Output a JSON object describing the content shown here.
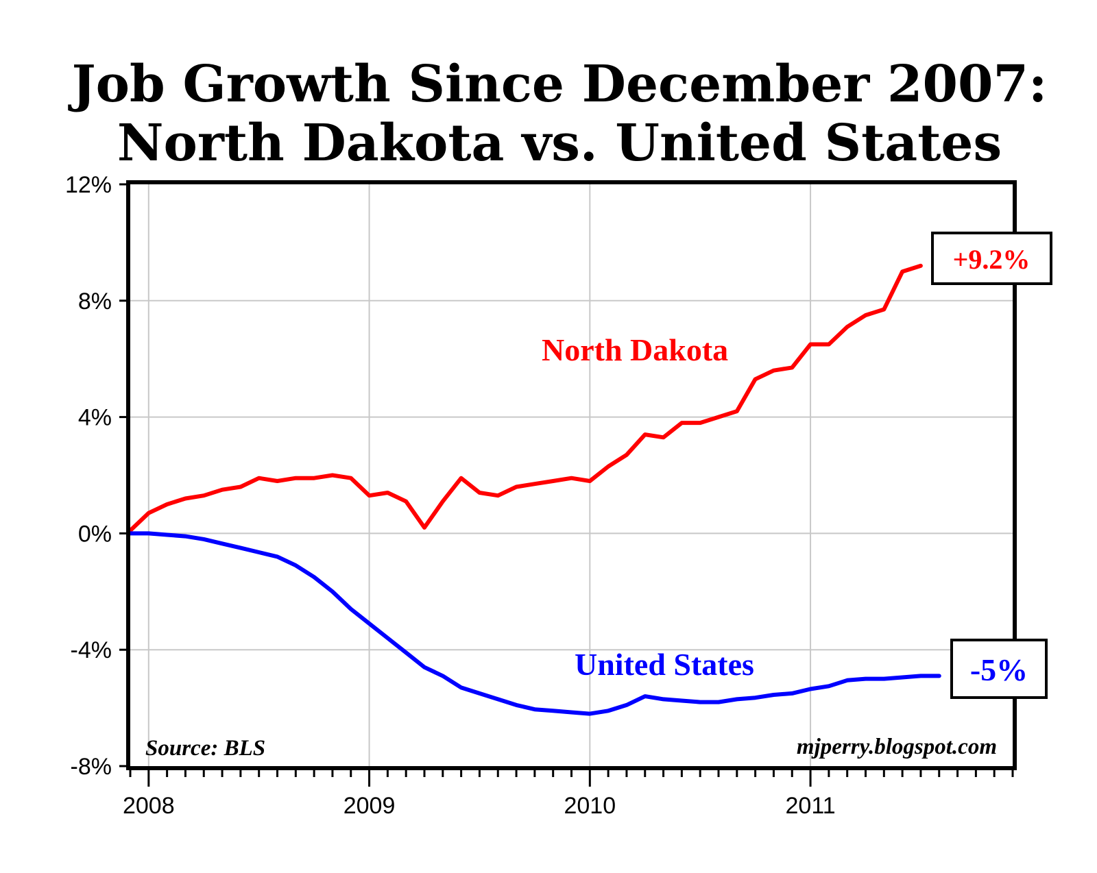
{
  "chart_data": {
    "type": "line",
    "title_line1": "Job Growth Since December 2007:",
    "title_line2": "North Dakota vs. United States",
    "xlabel": "",
    "ylabel": "",
    "x_ticks": [
      "2008",
      "2009",
      "2010",
      "2011"
    ],
    "y_ticks": [
      "12%",
      "8%",
      "4%",
      "0%",
      "-4%",
      "-8%"
    ],
    "ylim": [
      -8,
      12
    ],
    "xlim": [
      "2007-12",
      "2011-12"
    ],
    "grid": true,
    "source_note": "Source: BLS",
    "site_note": "mjperry.blogspot.com",
    "x": [
      "2007-12",
      "2008-01",
      "2008-02",
      "2008-03",
      "2008-04",
      "2008-05",
      "2008-06",
      "2008-07",
      "2008-08",
      "2008-09",
      "2008-10",
      "2008-11",
      "2008-12",
      "2009-01",
      "2009-02",
      "2009-03",
      "2009-04",
      "2009-05",
      "2009-06",
      "2009-07",
      "2009-08",
      "2009-09",
      "2009-10",
      "2009-11",
      "2009-12",
      "2010-01",
      "2010-02",
      "2010-03",
      "2010-04",
      "2010-05",
      "2010-06",
      "2010-07",
      "2010-08",
      "2010-09",
      "2010-10",
      "2010-11",
      "2010-12",
      "2011-01",
      "2011-02",
      "2011-03",
      "2011-04",
      "2011-05",
      "2011-06",
      "2011-07",
      "2011-08"
    ],
    "series": [
      {
        "name": "North Dakota",
        "color": "#ff0000",
        "end_label": "+9.2%",
        "values": [
          0.1,
          0.7,
          1.0,
          1.2,
          1.3,
          1.5,
          1.6,
          1.9,
          1.8,
          1.9,
          1.9,
          2.0,
          1.9,
          1.3,
          1.4,
          1.1,
          0.2,
          1.1,
          1.9,
          1.4,
          1.3,
          1.6,
          1.7,
          1.8,
          1.9,
          1.8,
          2.3,
          2.7,
          3.4,
          3.3,
          3.8,
          3.8,
          4.0,
          4.2,
          5.3,
          5.6,
          5.7,
          6.5,
          6.5,
          7.1,
          7.5,
          7.7,
          9.0,
          9.2,
          null
        ]
      },
      {
        "name": "United States",
        "color": "#0000ff",
        "end_label": "-5%",
        "values": [
          0.0,
          0.0,
          -0.05,
          -0.1,
          -0.2,
          -0.35,
          -0.5,
          -0.65,
          -0.8,
          -1.1,
          -1.5,
          -2.0,
          -2.6,
          -3.1,
          -3.6,
          -4.1,
          -4.6,
          -4.9,
          -5.3,
          -5.5,
          -5.7,
          -5.9,
          -6.05,
          -6.1,
          -6.15,
          -6.2,
          -6.1,
          -5.9,
          -5.6,
          -5.7,
          -5.75,
          -5.8,
          -5.8,
          -5.7,
          -5.65,
          -5.55,
          -5.5,
          -5.35,
          -5.25,
          -5.05,
          -5.0,
          -5.0,
          -4.95,
          -4.9,
          -4.9
        ]
      }
    ]
  }
}
